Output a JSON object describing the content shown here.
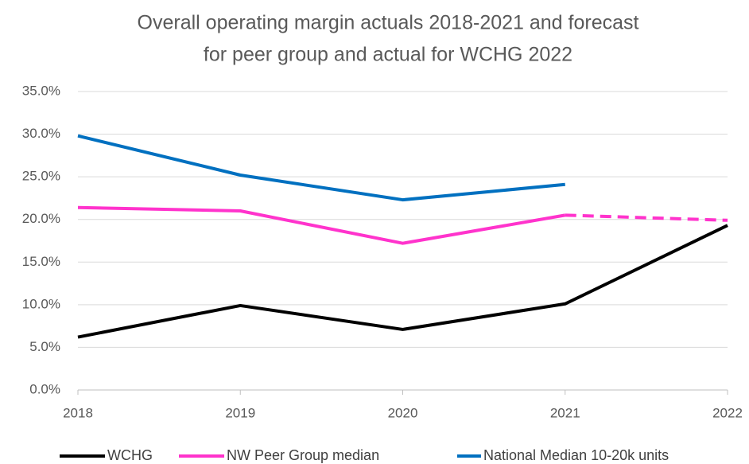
{
  "chart_data": {
    "type": "line",
    "title": [
      "Overall operating margin actuals 2018-2021 and forecast",
      "for peer group and actual for WCHG 2022"
    ],
    "categories": [
      "2018",
      "2019",
      "2020",
      "2021",
      "2022"
    ],
    "series": [
      {
        "name": "WCHG",
        "color": "#000000",
        "values": [
          6.2,
          9.9,
          7.1,
          10.1,
          19.3
        ]
      },
      {
        "name": "NW Peer Group median",
        "color": "#ff33cc",
        "values": [
          21.4,
          21.0,
          17.2,
          20.5,
          19.9
        ],
        "dashed_after": 3
      },
      {
        "name": "National Median 10-20k units",
        "color": "#0070c0",
        "values": [
          29.8,
          25.2,
          22.3,
          24.1,
          null
        ]
      }
    ],
    "ylim": [
      0,
      35
    ],
    "yticks": [
      {
        "value": 0,
        "label": "0.0%"
      },
      {
        "value": 5,
        "label": "5.0%"
      },
      {
        "value": 10,
        "label": "10.0%"
      },
      {
        "value": 15,
        "label": "15.0%"
      },
      {
        "value": 20,
        "label": "20.0%"
      },
      {
        "value": 25,
        "label": "25.0%"
      },
      {
        "value": 30,
        "label": "30.0%"
      },
      {
        "value": 35,
        "label": "35.0%"
      }
    ],
    "grid": true,
    "legend": "bottom"
  }
}
